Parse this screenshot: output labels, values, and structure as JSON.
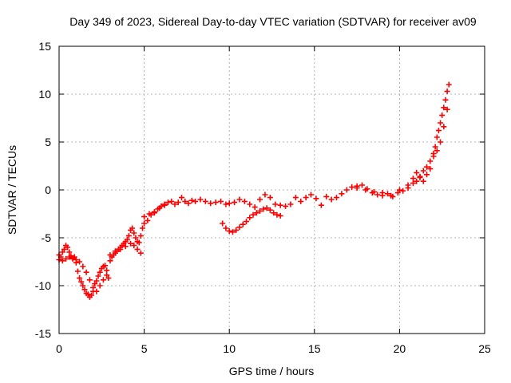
{
  "chart_data": {
    "type": "scatter",
    "title": "Day 349 of 2023, Sidereal Day-to-day VTEC variation (SDTVAR) for receiver av09",
    "xlabel": "GPS time / hours",
    "ylabel": "SDTVAR / TECUs",
    "xlim": [
      0,
      25
    ],
    "ylim": [
      -15,
      15
    ],
    "xticks": [
      0,
      5,
      10,
      15,
      20,
      25
    ],
    "yticks": [
      -15,
      -10,
      -5,
      0,
      5,
      10,
      15
    ],
    "grid": true,
    "marker": "+",
    "series": [
      {
        "name": "SDTVAR",
        "color": "#ff0000",
        "x": [
          0.0,
          0.1,
          0.2,
          0.3,
          0.4,
          0.5,
          0.6,
          0.7,
          0.8,
          0.9,
          1.0,
          1.1,
          1.2,
          1.3,
          1.4,
          1.5,
          1.6,
          1.7,
          1.8,
          1.9,
          2.0,
          2.1,
          2.2,
          2.3,
          2.4,
          2.5,
          2.6,
          2.7,
          2.8,
          2.9,
          3.0,
          3.1,
          3.2,
          3.3,
          3.4,
          3.5,
          3.6,
          3.7,
          3.8,
          3.9,
          4.0,
          4.1,
          4.2,
          4.3,
          4.4,
          4.5,
          4.6,
          4.7,
          4.8,
          4.9,
          5.0,
          5.2,
          5.4,
          5.6,
          5.8,
          6.0,
          6.2,
          6.4,
          6.6,
          6.8,
          7.0,
          7.2,
          7.4,
          7.6,
          7.8,
          8.0,
          8.3,
          8.6,
          8.9,
          9.2,
          9.5,
          9.8,
          10.0,
          10.3,
          10.6,
          10.9,
          11.2,
          11.5,
          11.8,
          12.1,
          12.4,
          12.7,
          13.0,
          13.3,
          13.6,
          13.9,
          14.2,
          14.5,
          14.8,
          15.1,
          15.4,
          15.7,
          16.0,
          16.3,
          16.6,
          16.9,
          17.2,
          17.5,
          17.8,
          18.1,
          18.4,
          18.7,
          19.0,
          19.3,
          19.6,
          19.9,
          20.2,
          20.5,
          20.8,
          21.0,
          21.2,
          21.4,
          21.6,
          21.8,
          22.0,
          22.1,
          22.2,
          22.3,
          22.4,
          22.5,
          22.6,
          22.7,
          22.8,
          22.9
        ],
        "y": [
          -6.8,
          -7.0,
          -6.5,
          -6.2,
          -5.8,
          -6.0,
          -6.5,
          -6.9,
          -7.2,
          -7.0,
          -7.6,
          -8.5,
          -9.2,
          -9.6,
          -10.0,
          -10.4,
          -10.8,
          -10.9,
          -11.2,
          -11.0,
          -10.6,
          -9.8,
          -9.5,
          -9.0,
          -8.6,
          -8.2,
          -8.0,
          -7.9,
          -8.4,
          -9.2,
          -7.4,
          -7.0,
          -6.8,
          -6.6,
          -6.4,
          -6.2,
          -6.0,
          -5.8,
          -5.6,
          -5.4,
          -5.2,
          -4.8,
          -4.2,
          -4.0,
          -4.5,
          -5.0,
          -5.4,
          -5.5,
          -4.8,
          -4.0,
          -3.5,
          -3.2,
          -2.6,
          -2.3,
          -2.0,
          -1.7,
          -1.5,
          -1.3,
          -1.2,
          -1.5,
          -1.3,
          -0.8,
          -1.2,
          -1.4,
          -1.1,
          -1.2,
          -1.0,
          -1.2,
          -1.4,
          -1.3,
          -1.2,
          -1.5,
          -1.4,
          -1.3,
          -1.0,
          -1.2,
          -1.5,
          -1.8,
          -1.0,
          -0.5,
          -0.8,
          -1.5,
          -1.6,
          -1.7,
          -1.5,
          -0.8,
          -1.2,
          -0.8,
          -0.5,
          -0.9,
          -1.6,
          -0.7,
          -1.0,
          -0.8,
          -0.4,
          0.0,
          0.3,
          0.4,
          0.5,
          0.1,
          -0.3,
          -0.5,
          -0.6,
          -0.4,
          -0.7,
          -0.3,
          -0.1,
          0.5,
          0.7,
          0.9,
          1.4,
          2.0,
          2.4,
          3.0,
          3.8,
          4.5,
          5.5,
          6.2,
          7.0,
          7.8,
          8.6,
          9.4,
          10.3,
          11.0
        ]
      },
      {
        "name": "SDTVAR (secondary arcs)",
        "color": "#ff0000",
        "x": [
          0.0,
          0.2,
          0.4,
          0.6,
          0.8,
          1.0,
          1.2,
          1.4,
          1.6,
          1.8,
          2.0,
          2.2,
          2.4,
          2.6,
          2.8,
          3.0,
          3.3,
          3.6,
          3.9,
          4.2,
          4.4,
          4.6,
          4.8,
          5.0,
          5.3,
          5.6,
          5.9,
          6.2,
          9.6,
          9.8,
          10.0,
          10.2,
          10.4,
          10.6,
          10.8,
          11.0,
          11.2,
          11.4,
          11.6,
          11.8,
          12.0,
          12.2,
          12.4,
          12.6,
          12.8,
          13.0,
          17.5,
          18.0,
          18.5,
          19.0,
          19.5,
          20.0,
          20.5,
          20.8,
          21.0,
          21.2,
          21.4,
          21.6,
          21.8,
          22.0,
          22.2,
          22.4,
          22.6,
          22.8
        ],
        "y": [
          -7.3,
          -7.4,
          -7.2,
          -7.0,
          -7.1,
          -7.3,
          -7.5,
          -8.0,
          -8.6,
          -9.4,
          -10.2,
          -10.6,
          -10.0,
          -9.4,
          -8.9,
          -6.8,
          -6.4,
          -6.2,
          -5.9,
          -5.6,
          -5.8,
          -6.2,
          -6.6,
          -2.8,
          -2.5,
          -2.4,
          -1.9,
          -1.6,
          -3.5,
          -4.0,
          -4.3,
          -4.4,
          -4.2,
          -3.9,
          -3.6,
          -3.3,
          -2.9,
          -2.6,
          -2.4,
          -2.2,
          -2.0,
          -1.9,
          -2.1,
          -2.4,
          -2.6,
          -2.7,
          0.2,
          0.0,
          -0.2,
          -0.3,
          -0.6,
          0.0,
          0.2,
          1.2,
          1.8,
          1.3,
          0.9,
          1.6,
          2.2,
          3.5,
          4.1,
          5.0,
          6.6,
          8.4
        ]
      }
    ]
  }
}
